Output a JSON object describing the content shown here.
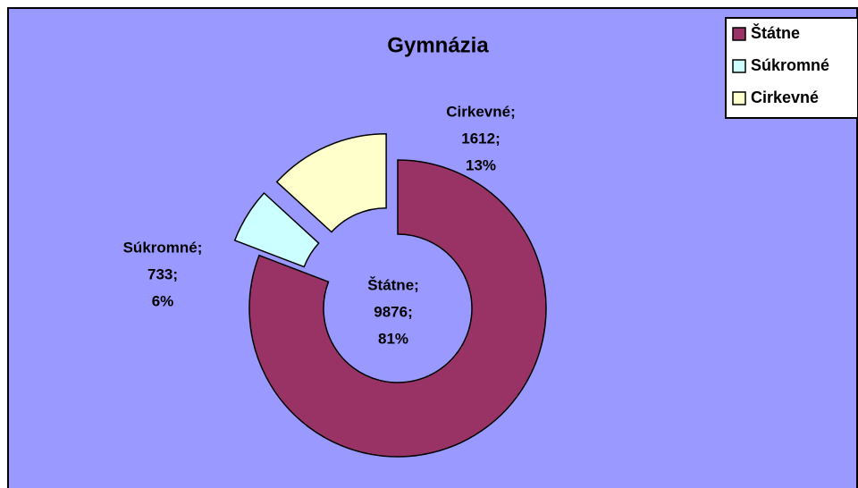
{
  "chart_data": {
    "type": "donut",
    "title": "Gymnázia",
    "categories": [
      "Štátne",
      "Súkromné",
      "Cirkevné"
    ],
    "values": [
      9876,
      733,
      1612
    ],
    "value_labels": [
      [
        "Štátne;",
        "9876;",
        "81%"
      ],
      [
        "Súkromné;",
        "733;",
        "6%"
      ],
      [
        "Cirkevné;",
        "1612;",
        "13%"
      ]
    ],
    "colors": [
      "#993366",
      "#ccffff",
      "#ffffcc"
    ],
    "legend": "top-right"
  }
}
